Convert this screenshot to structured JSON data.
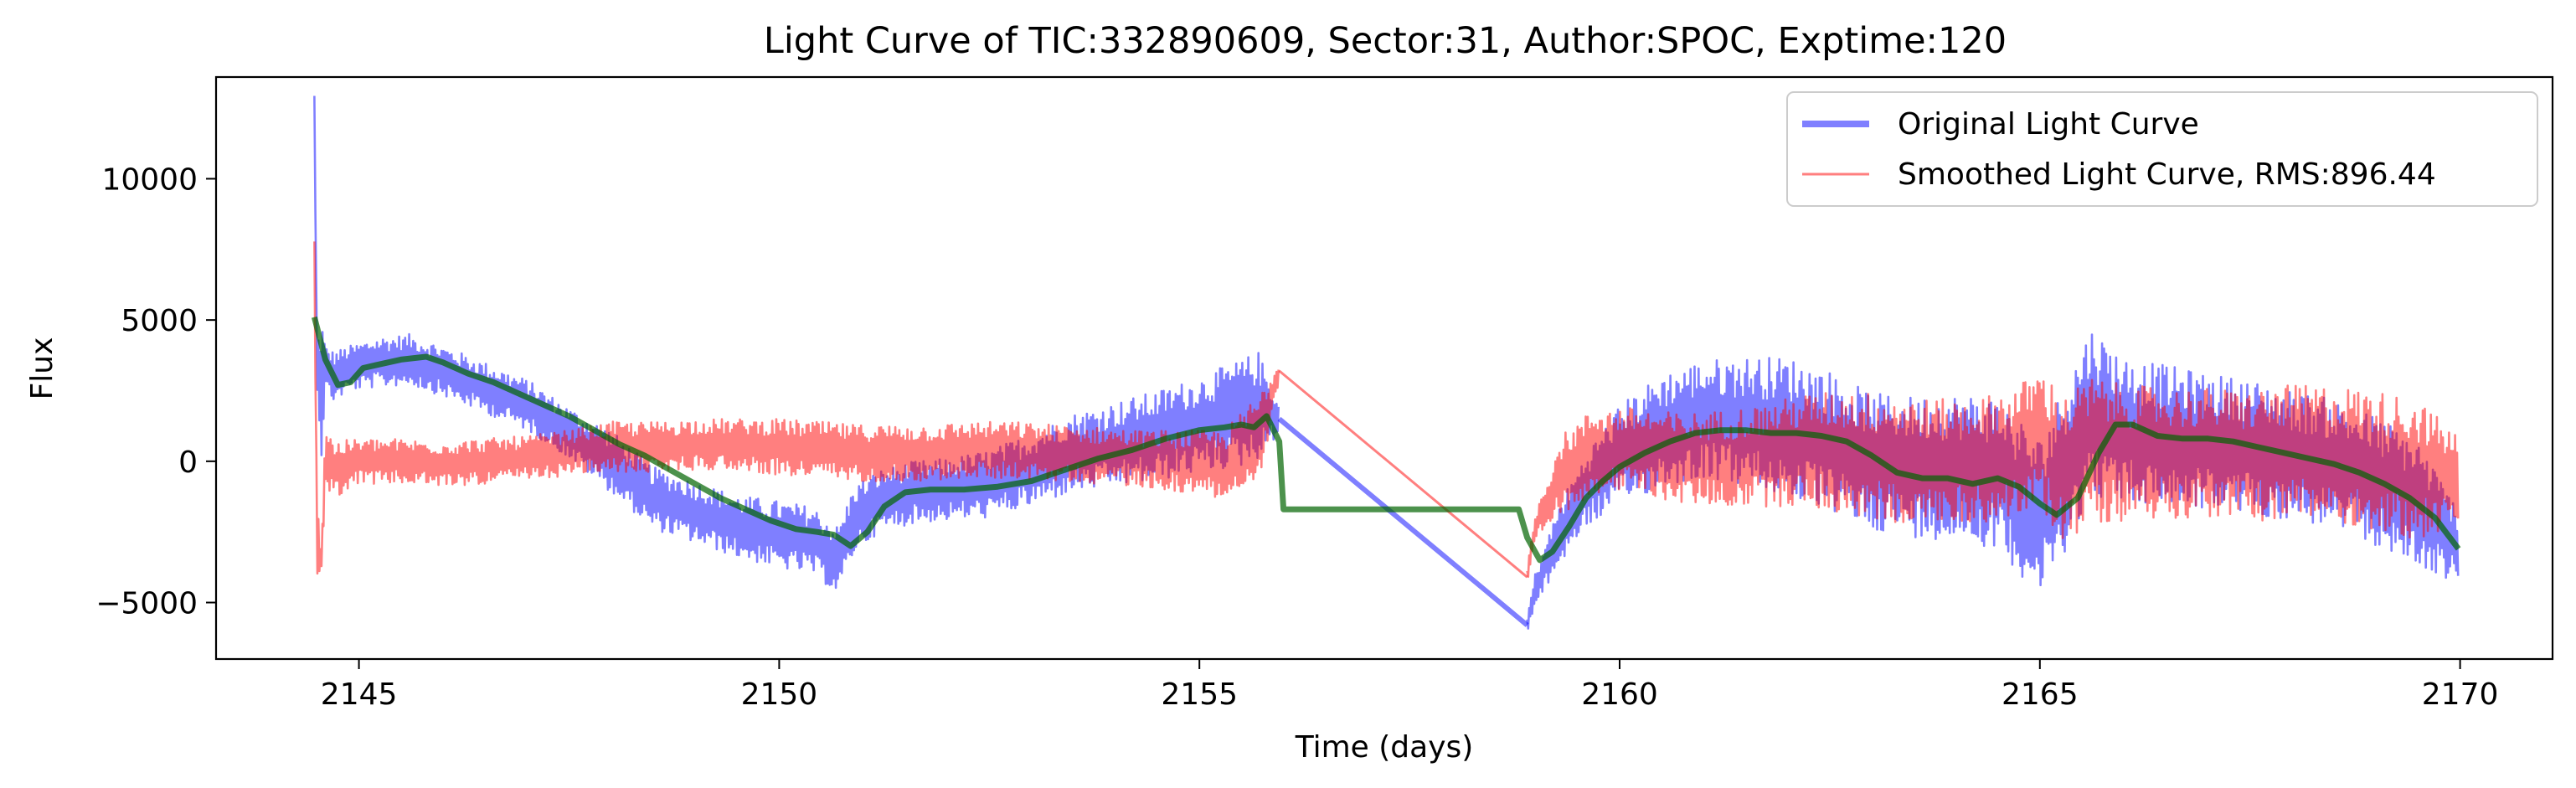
{
  "chart_data": {
    "type": "line",
    "title": "Light Curve of TIC:332890609, Sector:31, Author:SPOC, Exptime:120",
    "xlabel": "Time (days)",
    "ylabel": "Flux",
    "xlim": [
      2143.3,
      2171.1
    ],
    "ylim": [
      -7000,
      13600
    ],
    "xticks": [
      2145,
      2150,
      2155,
      2160,
      2165,
      2170
    ],
    "xtick_labels": [
      "2145",
      "2150",
      "2155",
      "2160",
      "2165",
      "2170"
    ],
    "yticks": [
      -5000,
      0,
      5000,
      10000
    ],
    "ytick_labels": [
      "−5000",
      "0",
      "5000",
      "10000"
    ],
    "grid": false,
    "legend_position": "top-right",
    "series": [
      {
        "name": "Original Light Curve",
        "color": "#0000ff",
        "opacity": 0.5,
        "style": "band",
        "x": [
          2144.47,
          2144.5,
          2144.55,
          2144.6,
          2144.7,
          2144.9,
          2145.2,
          2145.6,
          2146.0,
          2146.5,
          2147.0,
          2147.5,
          2148.0,
          2148.5,
          2149.0,
          2149.5,
          2150.0,
          2150.4,
          2150.7,
          2150.9,
          2151.2,
          2151.6,
          2152.0,
          2152.5,
          2153.0,
          2153.5,
          2154.0,
          2154.5,
          2155.0,
          2155.5,
          2155.7,
          2155.95,
          2158.9,
          2159.0,
          2159.3,
          2159.6,
          2160.0,
          2160.5,
          2161.0,
          2161.5,
          2162.0,
          2162.5,
          2163.0,
          2163.5,
          2164.0,
          2164.5,
          2165.0,
          2165.3,
          2165.6,
          2166.0,
          2166.5,
          2167.0,
          2167.5,
          2168.0,
          2168.5,
          2169.0,
          2169.5,
          2169.98
        ],
        "y": [
          12700,
          3500,
          2600,
          3300,
          3000,
          3300,
          3500,
          3600,
          3200,
          2600,
          2000,
          1000,
          0,
          -1300,
          -1800,
          -2300,
          -2600,
          -2800,
          -3500,
          -2000,
          -1400,
          -1100,
          -1000,
          -800,
          -300,
          300,
          600,
          900,
          1300,
          1700,
          2000,
          1500,
          -5800,
          -4500,
          -2500,
          -1000,
          200,
          1100,
          1500,
          1400,
          1200,
          700,
          0,
          -200,
          -200,
          -400,
          -2000,
          -200,
          1800,
          1100,
          900,
          700,
          500,
          200,
          -100,
          -700,
          -1500,
          -3000
        ],
        "band": [
          300,
          600,
          2800,
          800,
          900,
          800,
          900,
          900,
          900,
          900,
          900,
          900,
          1100,
          1100,
          1100,
          1100,
          1200,
          1200,
          1200,
          1200,
          1100,
          1100,
          1100,
          1200,
          1300,
          1400,
          1500,
          1600,
          1700,
          1900,
          1900,
          500,
          300,
          600,
          1100,
          1300,
          1800,
          2000,
          2100,
          2300,
          2500,
          2500,
          2400,
          2500,
          2600,
          2700,
          2800,
          3000,
          3000,
          2600,
          2500,
          2400,
          2400,
          2300,
          2300,
          2300,
          2300,
          1300
        ]
      },
      {
        "name": "Smoothed Light Curve, RMS:896.44",
        "color": "#ff0000",
        "opacity": 0.5,
        "style": "band",
        "x": [
          2144.47,
          2144.5,
          2144.55,
          2144.6,
          2144.7,
          2145.0,
          2145.5,
          2146.0,
          2146.5,
          2147.0,
          2147.5,
          2148.0,
          2148.5,
          2149.0,
          2149.5,
          2150.0,
          2150.5,
          2150.9,
          2151.3,
          2151.8,
          2152.3,
          2152.8,
          2153.3,
          2153.8,
          2154.3,
          2154.8,
          2155.3,
          2155.7,
          2155.95,
          2158.9,
          2159.0,
          2159.3,
          2159.7,
          2160.2,
          2160.7,
          2161.2,
          2161.7,
          2162.2,
          2162.7,
          2163.2,
          2163.7,
          2164.2,
          2164.7,
          2165.0,
          2165.3,
          2165.6,
          2166.0,
          2166.5,
          2167.0,
          2167.5,
          2168.0,
          2168.5,
          2169.0,
          2169.5,
          2169.98
        ],
        "y": [
          7600,
          -2500,
          -3800,
          200,
          -300,
          0,
          0,
          -100,
          0,
          100,
          300,
          500,
          500,
          600,
          600,
          500,
          400,
          300,
          300,
          300,
          400,
          400,
          300,
          200,
          100,
          0,
          -100,
          700,
          3200,
          -4100,
          -2300,
          -500,
          400,
          400,
          100,
          100,
          200,
          400,
          300,
          100,
          0,
          0,
          300,
          800,
          -300,
          400,
          300,
          300,
          300,
          200,
          300,
          300,
          0,
          -300,
          -700
        ],
        "band": [
          300,
          1800,
          500,
          1200,
          1000,
          800,
          800,
          800,
          800,
          800,
          800,
          900,
          900,
          900,
          900,
          1000,
          1000,
          1000,
          1000,
          1000,
          1000,
          1000,
          1000,
          1000,
          1000,
          1100,
          1200,
          1700,
          300,
          300,
          500,
          1400,
          1500,
          1500,
          1600,
          1700,
          1800,
          2000,
          2200,
          2300,
          2200,
          2200,
          2300,
          2500,
          2600,
          2600,
          2400,
          2300,
          2300,
          2300,
          2400,
          2400,
          2500,
          2500,
          1600
        ]
      },
      {
        "name": "",
        "color": "#006400",
        "opacity": 0.7,
        "style": "line",
        "x": [
          2144.47,
          2144.6,
          2144.75,
          2144.9,
          2145.05,
          2145.2,
          2145.5,
          2145.8,
          2146.0,
          2146.3,
          2146.6,
          2146.9,
          2147.2,
          2147.5,
          2147.8,
          2148.1,
          2148.4,
          2148.7,
          2149.0,
          2149.3,
          2149.6,
          2149.9,
          2150.2,
          2150.45,
          2150.65,
          2150.85,
          2151.05,
          2151.25,
          2151.5,
          2151.8,
          2152.2,
          2152.6,
          2153.0,
          2153.4,
          2153.8,
          2154.2,
          2154.6,
          2155.0,
          2155.3,
          2155.5,
          2155.65,
          2155.8,
          2155.95,
          2156.0,
          2158.8,
          2158.9,
          2159.05,
          2159.2,
          2159.4,
          2159.6,
          2159.8,
          2160.0,
          2160.3,
          2160.6,
          2160.9,
          2161.2,
          2161.5,
          2161.8,
          2162.1,
          2162.4,
          2162.7,
          2163.0,
          2163.3,
          2163.6,
          2163.9,
          2164.2,
          2164.5,
          2164.75,
          2165.0,
          2165.2,
          2165.45,
          2165.7,
          2165.9,
          2166.1,
          2166.4,
          2166.7,
          2167.0,
          2167.3,
          2167.6,
          2167.9,
          2168.2,
          2168.5,
          2168.8,
          2169.1,
          2169.4,
          2169.7,
          2169.98
        ],
        "y": [
          5100,
          3600,
          2700,
          2800,
          3300,
          3400,
          3600,
          3700,
          3500,
          3100,
          2800,
          2400,
          2000,
          1600,
          1100,
          600,
          200,
          -300,
          -800,
          -1300,
          -1700,
          -2100,
          -2400,
          -2500,
          -2600,
          -3000,
          -2500,
          -1600,
          -1100,
          -1000,
          -1000,
          -900,
          -700,
          -300,
          100,
          400,
          800,
          1100,
          1200,
          1300,
          1200,
          1600,
          700,
          -1700,
          -1700,
          -2700,
          -3500,
          -3200,
          -2300,
          -1300,
          -700,
          -200,
          300,
          700,
          1000,
          1100,
          1100,
          1000,
          1000,
          900,
          700,
          200,
          -400,
          -600,
          -600,
          -800,
          -600,
          -900,
          -1500,
          -1900,
          -1300,
          300,
          1300,
          1300,
          900,
          800,
          800,
          700,
          500,
          300,
          100,
          -100,
          -400,
          -800,
          -1300,
          -2000,
          -3100
        ]
      }
    ]
  }
}
